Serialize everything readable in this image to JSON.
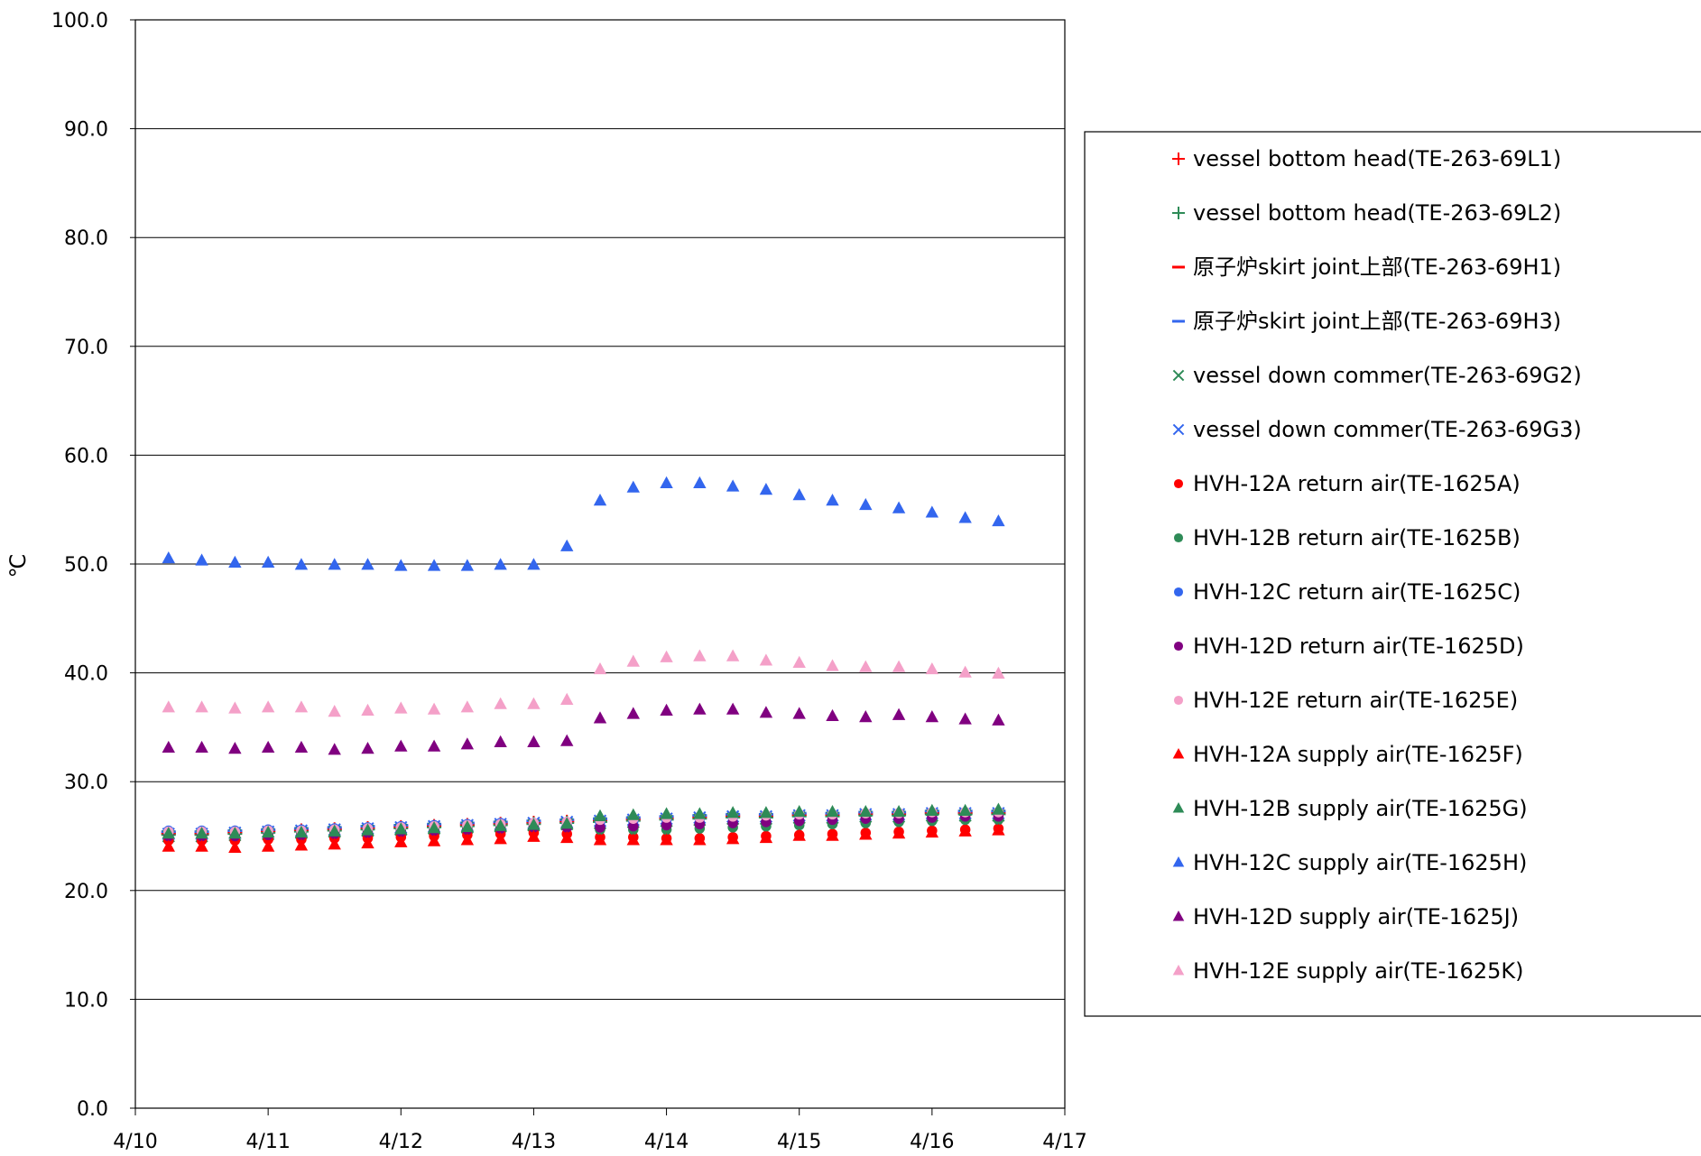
{
  "chart_data": {
    "type": "scatter",
    "title": "",
    "xlabel": "",
    "ylabel": "℃",
    "x_ticks": [
      "4/10",
      "4/11",
      "4/12",
      "4/13",
      "4/14",
      "4/15",
      "4/16",
      "4/17"
    ],
    "xlim": [
      "4/10 00:00",
      "4/17 00:00"
    ],
    "ylim": [
      0,
      100
    ],
    "y_ticks": [
      "0.0",
      "10.0",
      "20.0",
      "30.0",
      "40.0",
      "50.0",
      "60.0",
      "70.0",
      "80.0",
      "90.0",
      "100.0"
    ],
    "grid": "horizontal",
    "legend_position": "right",
    "x": [
      "4/10 06:00",
      "4/10 12:00",
      "4/10 18:00",
      "4/11 00:00",
      "4/11 06:00",
      "4/11 12:00",
      "4/11 18:00",
      "4/12 00:00",
      "4/12 06:00",
      "4/12 12:00",
      "4/12 18:00",
      "4/13 00:00",
      "4/13 06:00",
      "4/13 12:00",
      "4/13 18:00",
      "4/14 00:00",
      "4/14 06:00",
      "4/14 12:00",
      "4/14 18:00",
      "4/15 00:00",
      "4/15 06:00",
      "4/15 12:00",
      "4/15 18:00",
      "4/16 00:00",
      "4/16 06:00",
      "4/16 12:00"
    ],
    "series": [
      {
        "name": "vessel bottom head(TE-263-69L1)",
        "marker": "plus",
        "color": "#ff0000",
        "values": [
          25.2,
          25.2,
          25.3,
          25.4,
          25.5,
          25.6,
          25.7,
          25.8,
          25.9,
          26.0,
          26.1,
          26.2,
          26.3,
          26.4,
          26.5,
          26.6,
          26.7,
          26.8,
          26.8,
          26.9,
          26.9,
          27.0,
          27.0,
          27.1,
          27.1,
          27.1
        ]
      },
      {
        "name": "vessel bottom head(TE-263-69L2)",
        "marker": "plus",
        "color": "#2e8b57",
        "values": [
          25.1,
          25.1,
          25.2,
          25.3,
          25.4,
          25.5,
          25.6,
          25.7,
          25.8,
          25.9,
          26.0,
          26.1,
          26.2,
          26.3,
          26.4,
          26.5,
          26.6,
          26.7,
          26.7,
          26.8,
          26.8,
          26.9,
          26.9,
          27.0,
          27.0,
          27.0
        ]
      },
      {
        "name": "原子炉skirt joint上部(TE-263-69H1)",
        "marker": "dash",
        "color": "#ff0000",
        "values": [
          25.3,
          25.3,
          25.4,
          25.5,
          25.6,
          25.7,
          25.8,
          25.9,
          26.0,
          26.1,
          26.2,
          26.3,
          26.4,
          26.5,
          26.6,
          26.7,
          26.8,
          26.9,
          26.9,
          27.0,
          27.0,
          27.1,
          27.1,
          27.2,
          27.2,
          27.2
        ]
      },
      {
        "name": "原子炉skirt joint上部(TE-263-69H3)",
        "marker": "dash",
        "color": "#3366ee",
        "values": [
          25.4,
          25.4,
          25.5,
          25.6,
          25.7,
          25.8,
          25.9,
          26.0,
          26.1,
          26.2,
          26.3,
          26.4,
          26.5,
          26.6,
          26.7,
          26.8,
          26.9,
          27.0,
          27.0,
          27.1,
          27.1,
          27.2,
          27.2,
          27.3,
          27.3,
          27.3
        ]
      },
      {
        "name": "vessel down commer(TE-263-69G2)",
        "marker": "cross",
        "color": "#2e8b57",
        "values": [
          25.0,
          25.0,
          25.1,
          25.2,
          25.3,
          25.4,
          25.5,
          25.6,
          25.7,
          25.8,
          25.9,
          26.0,
          26.1,
          26.2,
          26.3,
          26.4,
          26.5,
          26.6,
          26.6,
          26.7,
          26.7,
          26.8,
          26.8,
          26.9,
          26.9,
          26.9
        ]
      },
      {
        "name": "vessel down commer(TE-263-69G3)",
        "marker": "cross",
        "color": "#3366ee",
        "values": [
          25.2,
          25.2,
          25.3,
          25.4,
          25.5,
          25.6,
          25.7,
          25.8,
          25.9,
          26.0,
          26.1,
          26.2,
          26.3,
          26.4,
          26.5,
          26.6,
          26.7,
          26.8,
          26.8,
          26.9,
          26.9,
          27.0,
          27.0,
          27.1,
          27.1,
          27.1
        ]
      },
      {
        "name": "HVH-12A return air(TE-1625A)",
        "marker": "circle",
        "color": "#ff0000",
        "values": [
          24.6,
          24.6,
          24.6,
          24.7,
          24.7,
          24.8,
          24.8,
          24.9,
          25.0,
          25.1,
          25.2,
          25.3,
          25.2,
          24.9,
          24.9,
          24.8,
          24.8,
          24.9,
          25.0,
          25.1,
          25.2,
          25.3,
          25.4,
          25.5,
          25.6,
          25.7
        ]
      },
      {
        "name": "HVH-12B return air(TE-1625B)",
        "marker": "circle",
        "color": "#2e8b57",
        "values": [
          25.2,
          25.2,
          25.2,
          25.3,
          25.3,
          25.4,
          25.5,
          25.5,
          25.6,
          25.7,
          25.8,
          25.9,
          25.9,
          25.6,
          25.6,
          25.6,
          25.7,
          25.8,
          25.9,
          26.0,
          26.1,
          26.2,
          26.3,
          26.4,
          26.5,
          26.5
        ]
      },
      {
        "name": "HVH-12C return air(TE-1625C)",
        "marker": "circle",
        "color": "#3366ee",
        "values": [
          25.5,
          25.5,
          25.5,
          25.6,
          25.6,
          25.7,
          25.8,
          25.9,
          26.0,
          26.1,
          26.2,
          26.2,
          26.2,
          26.3,
          26.4,
          26.5,
          26.6,
          26.7,
          26.8,
          26.9,
          27.0,
          27.0,
          27.1,
          27.1,
          27.2,
          27.2
        ]
      },
      {
        "name": "HVH-12D return air(TE-1625D)",
        "marker": "circle",
        "color": "#800080",
        "values": [
          25.0,
          25.0,
          25.0,
          25.1,
          25.1,
          25.2,
          25.3,
          25.4,
          25.5,
          25.6,
          25.7,
          25.8,
          25.8,
          25.8,
          25.9,
          26.0,
          26.1,
          26.2,
          26.3,
          26.4,
          26.5,
          26.6,
          26.6,
          26.7,
          26.8,
          26.8
        ]
      },
      {
        "name": "HVH-12E return air(TE-1625E)",
        "marker": "circle",
        "color": "#f4a0c8",
        "values": [
          25.4,
          25.4,
          25.4,
          25.5,
          25.5,
          25.6,
          25.7,
          25.8,
          25.9,
          26.0,
          26.1,
          26.2,
          26.3,
          26.5,
          26.6,
          26.7,
          26.7,
          26.8,
          26.9,
          27.0,
          27.0,
          27.1,
          27.1,
          27.2,
          27.2,
          27.2
        ]
      },
      {
        "name": "HVH-12A supply air(TE-1625F)",
        "marker": "triangle",
        "color": "#ff0000",
        "values": [
          24.0,
          24.0,
          23.9,
          24.0,
          24.1,
          24.2,
          24.3,
          24.4,
          24.5,
          24.6,
          24.7,
          24.9,
          24.8,
          24.6,
          24.6,
          24.6,
          24.6,
          24.7,
          24.8,
          25.0,
          25.0,
          25.1,
          25.2,
          25.3,
          25.4,
          25.5
        ]
      },
      {
        "name": "HVH-12B supply air(TE-1625G)",
        "marker": "triangle",
        "color": "#2e8b57",
        "values": [
          25.2,
          25.2,
          25.2,
          25.3,
          25.3,
          25.4,
          25.5,
          25.6,
          25.7,
          25.8,
          25.9,
          26.0,
          26.1,
          26.8,
          26.9,
          27.0,
          27.0,
          27.1,
          27.1,
          27.2,
          27.2,
          27.2,
          27.2,
          27.3,
          27.3,
          27.4
        ]
      },
      {
        "name": "HVH-12C supply air(TE-1625H)",
        "marker": "triangle",
        "color": "#3366ee",
        "values": [
          50.5,
          50.3,
          50.1,
          50.1,
          49.9,
          49.9,
          49.9,
          49.8,
          49.8,
          49.8,
          49.9,
          49.9,
          51.6,
          55.8,
          57.0,
          57.4,
          57.4,
          57.1,
          56.8,
          56.3,
          55.8,
          55.4,
          55.1,
          54.7,
          54.2,
          53.9
        ]
      },
      {
        "name": "HVH-12D supply air(TE-1625J)",
        "marker": "triangle",
        "color": "#800080",
        "values": [
          33.1,
          33.1,
          33.0,
          33.1,
          33.1,
          32.9,
          33.0,
          33.2,
          33.2,
          33.4,
          33.6,
          33.6,
          33.7,
          35.8,
          36.2,
          36.5,
          36.6,
          36.6,
          36.3,
          36.2,
          36.0,
          35.9,
          36.1,
          35.9,
          35.7,
          35.6
        ]
      },
      {
        "name": "HVH-12E supply air(TE-1625K)",
        "marker": "triangle",
        "color": "#f4a0c8",
        "values": [
          36.8,
          36.8,
          36.7,
          36.8,
          36.8,
          36.4,
          36.5,
          36.7,
          36.6,
          36.8,
          37.1,
          37.1,
          37.5,
          40.3,
          41.0,
          41.4,
          41.5,
          41.5,
          41.1,
          40.9,
          40.6,
          40.5,
          40.5,
          40.3,
          40.0,
          39.9
        ]
      }
    ]
  }
}
